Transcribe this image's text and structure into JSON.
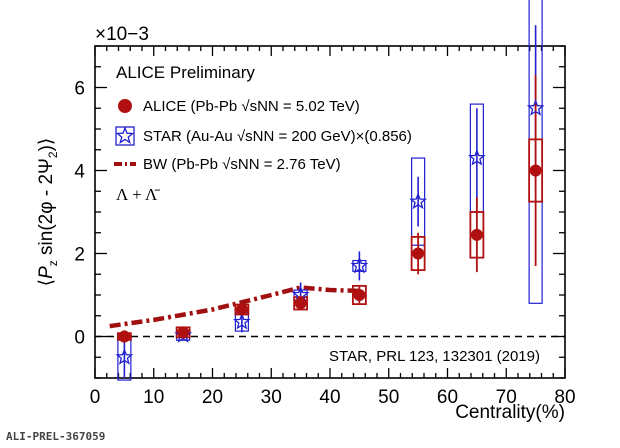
{
  "chart_data": {
    "type": "scatter",
    "ylabel": "⟨P_z sin(2φ - 2Ψ_2)⟩",
    "y_multiplier": "×10−3",
    "xlabel": "Centrality(%)",
    "xlim": [
      0,
      80
    ],
    "ylim": [
      -1,
      7
    ],
    "xticks": [
      0,
      10,
      20,
      30,
      40,
      50,
      60,
      70,
      80
    ],
    "yticks": [
      0,
      2,
      4,
      6
    ],
    "grid": false,
    "zero_line": "dashed",
    "annotations": [
      "ALICE Preliminary",
      "Λ + Λ̄",
      "STAR, PRL 123, 132301 (2019)"
    ],
    "legend_placement": "top-left",
    "series": [
      {
        "name": "ALICE (Pb-Pb √sNN = 5.02 TeV)",
        "color": "#b01010",
        "marker": "circle",
        "x": [
          5,
          15,
          25,
          35,
          45,
          55,
          65,
          75
        ],
        "y": [
          0.0,
          0.1,
          0.65,
          0.8,
          1.0,
          2.0,
          2.45,
          4.0
        ],
        "stat_err": [
          0.15,
          0.1,
          0.12,
          0.15,
          0.2,
          0.5,
          0.9,
          2.3
        ],
        "sys_err": [
          0.08,
          0.12,
          0.12,
          0.15,
          0.22,
          0.4,
          0.55,
          0.75
        ]
      },
      {
        "name": "STAR (Au-Au √sNN = 200 GeV)×(0.856)",
        "color": "#2020d0",
        "marker": "star",
        "x": [
          5,
          15,
          25,
          35,
          45,
          55,
          65,
          75
        ],
        "y": [
          -0.5,
          0.03,
          0.35,
          1.0,
          1.7,
          3.25,
          4.3,
          5.5
        ],
        "stat_err": [
          0.5,
          0.1,
          0.25,
          0.3,
          0.35,
          0.6,
          1.2,
          2.0
        ],
        "sys_err": [
          0.55,
          0.12,
          0.22,
          0.12,
          0.13,
          1.05,
          1.3,
          4.7
        ]
      },
      {
        "name": "BW (Pb-Pb √sNN = 2.76 TeV)",
        "color": "#a01010",
        "marker": "dash-dot line",
        "x": [
          2.5,
          10,
          20,
          30,
          35,
          40,
          45
        ],
        "y": [
          0.25,
          0.4,
          0.65,
          1.0,
          1.18,
          1.12,
          1.1
        ]
      }
    ]
  },
  "labels": {
    "alice_preliminary": "ALICE Preliminary",
    "lambda": "Λ + Λ̄",
    "reference": "STAR, PRL 123, 132301 (2019)",
    "multiplier": "×10−3",
    "xlabel": "Centrality(%)",
    "footer": "ALI-PREL-367059"
  }
}
